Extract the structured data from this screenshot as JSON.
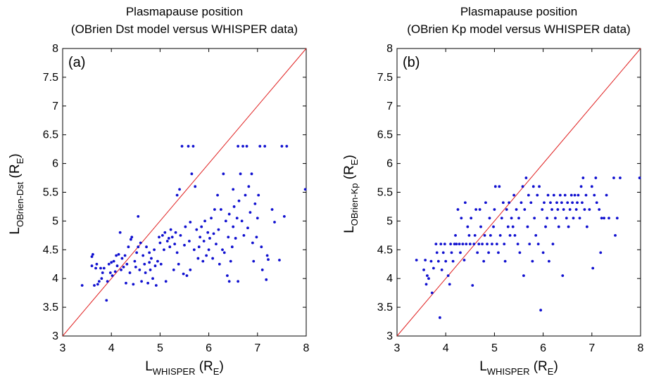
{
  "chart_data": [
    {
      "type": "scatter",
      "panel_label": "(a)",
      "title_line1": "Plasmapause position",
      "title_line2": "(OBrien Dst model versus WHISPER data)",
      "xlabel": {
        "main": "L",
        "sub": "WHISPER",
        "unit_open": " (R",
        "unit_sub": "E",
        "unit_close": ")"
      },
      "ylabel": {
        "main": "L",
        "sub": "OBrien-Dst",
        "unit_open": " (R",
        "unit_sub": "E",
        "unit_close": ")"
      },
      "xlim": [
        3,
        8
      ],
      "ylim": [
        3,
        8
      ],
      "x_ticks": [
        3,
        4,
        5,
        6,
        7,
        8
      ],
      "y_ticks": [
        3,
        3.5,
        4,
        4.5,
        5,
        5.5,
        6,
        6.5,
        7,
        7.5,
        8
      ],
      "x_tick_labels": [
        "3",
        "4",
        "5",
        "6",
        "7",
        "8"
      ],
      "y_tick_labels": [
        "3",
        "3.5",
        "4",
        "4.5",
        "5",
        "5.5",
        "6",
        "6.5",
        "7",
        "7.5",
        "8"
      ],
      "reference_line": {
        "from": [
          3,
          3
        ],
        "to": [
          8,
          8
        ],
        "color": "#e02020"
      },
      "marker_color": "#1010d0",
      "points": [
        [
          3.4,
          3.88
        ],
        [
          3.6,
          4.22
        ],
        [
          3.6,
          4.38
        ],
        [
          3.62,
          4.42
        ],
        [
          3.65,
          3.88
        ],
        [
          3.68,
          4.18
        ],
        [
          3.7,
          4.25
        ],
        [
          3.72,
          3.9
        ],
        [
          3.75,
          3.95
        ],
        [
          3.78,
          4.18
        ],
        [
          3.8,
          4.0
        ],
        [
          3.82,
          4.1
        ],
        [
          3.85,
          4.18
        ],
        [
          3.9,
          3.62
        ],
        [
          3.92,
          3.95
        ],
        [
          3.95,
          4.25
        ],
        [
          3.98,
          4.1
        ],
        [
          4.0,
          4.28
        ],
        [
          4.02,
          4.05
        ],
        [
          4.05,
          4.3
        ],
        [
          4.08,
          4.12
        ],
        [
          4.1,
          4.4
        ],
        [
          4.12,
          4.22
        ],
        [
          4.15,
          4.42
        ],
        [
          4.18,
          4.8
        ],
        [
          4.2,
          4.15
        ],
        [
          4.22,
          4.35
        ],
        [
          4.25,
          4.2
        ],
        [
          4.28,
          4.4
        ],
        [
          4.3,
          3.92
        ],
        [
          4.32,
          4.25
        ],
        [
          4.35,
          4.55
        ],
        [
          4.38,
          4.1
        ],
        [
          4.4,
          4.68
        ],
        [
          4.42,
          4.72
        ],
        [
          4.45,
          3.9
        ],
        [
          4.48,
          4.3
        ],
        [
          4.5,
          4.2
        ],
        [
          4.52,
          4.45
        ],
        [
          4.55,
          4.55
        ],
        [
          4.55,
          5.08
        ],
        [
          4.58,
          4.15
        ],
        [
          4.6,
          4.62
        ],
        [
          4.62,
          3.95
        ],
        [
          4.65,
          4.4
        ],
        [
          4.68,
          4.25
        ],
        [
          4.7,
          4.1
        ],
        [
          4.72,
          4.55
        ],
        [
          4.75,
          3.92
        ],
        [
          4.78,
          4.28
        ],
        [
          4.8,
          4.15
        ],
        [
          4.82,
          4.35
        ],
        [
          4.85,
          4.0
        ],
        [
          4.88,
          4.5
        ],
        [
          4.9,
          4.22
        ],
        [
          4.92,
          3.88
        ],
        [
          4.95,
          4.3
        ],
        [
          4.98,
          4.72
        ],
        [
          5.0,
          4.62
        ],
        [
          5.02,
          4.25
        ],
        [
          5.05,
          4.75
        ],
        [
          5.08,
          4.5
        ],
        [
          5.1,
          4.8
        ],
        [
          5.12,
          3.95
        ],
        [
          5.15,
          4.65
        ],
        [
          5.18,
          4.7
        ],
        [
          5.2,
          4.55
        ],
        [
          5.22,
          4.85
        ],
        [
          5.25,
          4.72
        ],
        [
          5.28,
          4.15
        ],
        [
          5.3,
          4.6
        ],
        [
          5.32,
          4.8
        ],
        [
          5.35,
          4.45
        ],
        [
          5.38,
          4.25
        ],
        [
          5.4,
          5.55
        ],
        [
          5.42,
          4.75
        ],
        [
          5.45,
          6.3
        ],
        [
          5.48,
          4.08
        ],
        [
          5.5,
          4.58
        ],
        [
          5.52,
          4.9
        ],
        [
          5.55,
          4.05
        ],
        [
          5.58,
          6.3
        ],
        [
          5.6,
          4.65
        ],
        [
          5.62,
          4.15
        ],
        [
          5.65,
          5.82
        ],
        [
          5.68,
          6.3
        ],
        [
          5.7,
          4.5
        ],
        [
          5.72,
          5.6
        ],
        [
          5.75,
          4.85
        ],
        [
          5.78,
          4.35
        ],
        [
          5.8,
          4.55
        ],
        [
          5.82,
          4.72
        ],
        [
          5.85,
          4.9
        ],
        [
          5.88,
          4.3
        ],
        [
          5.9,
          4.65
        ],
        [
          5.92,
          5.0
        ],
        [
          5.95,
          4.4
        ],
        [
          5.98,
          4.8
        ],
        [
          6.0,
          4.5
        ],
        [
          6.02,
          4.7
        ],
        [
          6.05,
          5.05
        ],
        [
          6.08,
          4.35
        ],
        [
          6.1,
          4.78
        ],
        [
          6.12,
          5.2
        ],
        [
          6.15,
          4.6
        ],
        [
          6.18,
          5.45
        ],
        [
          6.2,
          4.85
        ],
        [
          6.22,
          4.25
        ],
        [
          6.25,
          5.2
        ],
        [
          6.28,
          4.5
        ],
        [
          6.3,
          5.82
        ],
        [
          6.32,
          4.45
        ],
        [
          6.35,
          5.0
        ],
        [
          6.38,
          4.05
        ],
        [
          6.4,
          4.72
        ],
        [
          6.42,
          3.95
        ],
        [
          6.45,
          4.3
        ],
        [
          6.48,
          4.55
        ],
        [
          6.5,
          4.9
        ],
        [
          6.52,
          5.25
        ],
        [
          6.55,
          4.7
        ],
        [
          6.58,
          5.05
        ],
        [
          6.6,
          6.3
        ],
        [
          6.62,
          5.35
        ],
        [
          6.65,
          5.82
        ],
        [
          6.68,
          5.0
        ],
        [
          6.7,
          6.3
        ],
        [
          6.72,
          4.75
        ],
        [
          6.75,
          5.45
        ],
        [
          6.78,
          6.3
        ],
        [
          6.8,
          4.88
        ],
        [
          6.82,
          5.6
        ],
        [
          6.85,
          5.15
        ],
        [
          6.88,
          5.82
        ],
        [
          6.9,
          4.62
        ],
        [
          6.92,
          4.3
        ],
        [
          6.95,
          5.3
        ],
        [
          6.98,
          4.72
        ],
        [
          7.0,
          5.05
        ],
        [
          7.02,
          5.45
        ],
        [
          7.05,
          6.3
        ],
        [
          7.08,
          4.55
        ],
        [
          7.1,
          4.15
        ],
        [
          7.15,
          6.3
        ],
        [
          7.18,
          3.98
        ],
        [
          7.2,
          4.4
        ],
        [
          7.22,
          4.33
        ],
        [
          7.3,
          5.2
        ],
        [
          7.35,
          4.98
        ],
        [
          7.45,
          4.32
        ],
        [
          7.5,
          6.3
        ],
        [
          7.55,
          5.08
        ],
        [
          7.6,
          6.3
        ],
        [
          7.98,
          5.55
        ],
        [
          6.6,
          3.95
        ],
        [
          6.5,
          5.55
        ],
        [
          4.78,
          4.45
        ],
        [
          5.35,
          5.45
        ],
        [
          5.62,
          4.98
        ],
        [
          6.42,
          5.12
        ]
      ]
    },
    {
      "type": "scatter",
      "panel_label": "(b)",
      "title_line1": "Plasmapause position",
      "title_line2": "(OBrien Kp model versus WHISPER data)",
      "xlabel": {
        "main": "L",
        "sub": "WHISPER",
        "unit_open": " (R",
        "unit_sub": "E",
        "unit_close": ")"
      },
      "ylabel": {
        "main": "L",
        "sub": "OBrien-Kp",
        "unit_open": " (R",
        "unit_sub": "E",
        "unit_close": ")"
      },
      "xlim": [
        3,
        8
      ],
      "ylim": [
        3,
        8
      ],
      "x_ticks": [
        3,
        4,
        5,
        6,
        7,
        8
      ],
      "y_ticks": [
        3,
        3.5,
        4,
        4.5,
        5,
        5.5,
        6,
        6.5,
        7,
        7.5,
        8
      ],
      "x_tick_labels": [
        "3",
        "4",
        "5",
        "6",
        "7",
        "8"
      ],
      "y_tick_labels": [
        "3",
        "3.5",
        "4",
        "4.5",
        "5",
        "5.5",
        "6",
        "6.5",
        "7",
        "7.5",
        "8"
      ],
      "reference_line": {
        "from": [
          3,
          3
        ],
        "to": [
          8,
          8
        ],
        "color": "#e02020"
      },
      "marker_color": "#1010d0",
      "points": [
        [
          3.4,
          4.32
        ],
        [
          3.55,
          4.15
        ],
        [
          3.58,
          4.32
        ],
        [
          3.6,
          3.9
        ],
        [
          3.62,
          4.05
        ],
        [
          3.65,
          4.0
        ],
        [
          3.7,
          4.3
        ],
        [
          3.72,
          3.75
        ],
        [
          3.75,
          4.18
        ],
        [
          3.8,
          4.6
        ],
        [
          3.82,
          4.45
        ],
        [
          3.85,
          4.3
        ],
        [
          3.88,
          3.32
        ],
        [
          3.9,
          4.6
        ],
        [
          3.92,
          4.15
        ],
        [
          3.95,
          4.45
        ],
        [
          3.98,
          4.6
        ],
        [
          4.0,
          4.3
        ],
        [
          4.05,
          4.05
        ],
        [
          4.08,
          3.9
        ],
        [
          4.1,
          4.6
        ],
        [
          4.12,
          4.45
        ],
        [
          4.15,
          4.3
        ],
        [
          4.18,
          4.6
        ],
        [
          4.2,
          4.75
        ],
        [
          4.22,
          4.6
        ],
        [
          4.25,
          5.2
        ],
        [
          4.28,
          4.6
        ],
        [
          4.3,
          4.45
        ],
        [
          4.32,
          5.05
        ],
        [
          4.35,
          4.6
        ],
        [
          4.38,
          4.32
        ],
        [
          4.4,
          5.32
        ],
        [
          4.42,
          4.6
        ],
        [
          4.45,
          4.9
        ],
        [
          4.48,
          4.75
        ],
        [
          4.5,
          4.6
        ],
        [
          4.52,
          5.05
        ],
        [
          4.55,
          3.88
        ],
        [
          4.58,
          4.6
        ],
        [
          4.6,
          4.75
        ],
        [
          4.62,
          5.2
        ],
        [
          4.65,
          4.45
        ],
        [
          4.68,
          4.6
        ],
        [
          4.7,
          5.2
        ],
        [
          4.72,
          4.9
        ],
        [
          4.75,
          4.6
        ],
        [
          4.78,
          4.3
        ],
        [
          4.8,
          4.75
        ],
        [
          4.82,
          5.32
        ],
        [
          4.85,
          4.6
        ],
        [
          4.88,
          4.45
        ],
        [
          4.9,
          5.05
        ],
        [
          4.92,
          4.75
        ],
        [
          4.95,
          4.6
        ],
        [
          4.98,
          4.9
        ],
        [
          5.0,
          5.2
        ],
        [
          5.02,
          5.6
        ],
        [
          5.05,
          4.6
        ],
        [
          5.08,
          4.45
        ],
        [
          5.1,
          5.6
        ],
        [
          5.12,
          4.75
        ],
        [
          5.15,
          5.05
        ],
        [
          5.18,
          5.32
        ],
        [
          5.2,
          4.6
        ],
        [
          5.22,
          4.3
        ],
        [
          5.25,
          5.2
        ],
        [
          5.28,
          4.9
        ],
        [
          5.3,
          5.32
        ],
        [
          5.32,
          4.75
        ],
        [
          5.35,
          5.05
        ],
        [
          5.38,
          4.9
        ],
        [
          5.4,
          5.45
        ],
        [
          5.42,
          4.75
        ],
        [
          5.45,
          5.2
        ],
        [
          5.48,
          4.6
        ],
        [
          5.5,
          5.05
        ],
        [
          5.52,
          4.45
        ],
        [
          5.55,
          5.32
        ],
        [
          5.58,
          5.6
        ],
        [
          5.6,
          4.05
        ],
        [
          5.62,
          5.2
        ],
        [
          5.65,
          5.75
        ],
        [
          5.68,
          4.9
        ],
        [
          5.7,
          5.45
        ],
        [
          5.72,
          4.6
        ],
        [
          5.75,
          5.32
        ],
        [
          5.78,
          4.3
        ],
        [
          5.8,
          5.6
        ],
        [
          5.82,
          5.05
        ],
        [
          5.85,
          4.75
        ],
        [
          5.88,
          5.45
        ],
        [
          5.9,
          4.6
        ],
        [
          5.92,
          5.6
        ],
        [
          5.95,
          3.45
        ],
        [
          5.98,
          5.2
        ],
        [
          6.0,
          4.45
        ],
        [
          6.02,
          5.32
        ],
        [
          6.05,
          4.9
        ],
        [
          6.08,
          5.05
        ],
        [
          6.1,
          5.45
        ],
        [
          6.12,
          4.3
        ],
        [
          6.15,
          5.32
        ],
        [
          6.18,
          5.2
        ],
        [
          6.2,
          4.6
        ],
        [
          6.22,
          5.45
        ],
        [
          6.25,
          5.05
        ],
        [
          6.28,
          5.32
        ],
        [
          6.3,
          5.2
        ],
        [
          6.32,
          4.9
        ],
        [
          6.35,
          5.45
        ],
        [
          6.38,
          5.32
        ],
        [
          6.4,
          4.05
        ],
        [
          6.42,
          5.2
        ],
        [
          6.45,
          5.45
        ],
        [
          6.48,
          5.05
        ],
        [
          6.5,
          5.32
        ],
        [
          6.52,
          4.9
        ],
        [
          6.55,
          5.2
        ],
        [
          6.58,
          5.45
        ],
        [
          6.6,
          5.32
        ],
        [
          6.62,
          5.05
        ],
        [
          6.65,
          5.45
        ],
        [
          6.68,
          5.2
        ],
        [
          6.7,
          5.32
        ],
        [
          6.72,
          5.45
        ],
        [
          6.75,
          5.05
        ],
        [
          6.78,
          5.6
        ],
        [
          6.8,
          5.32
        ],
        [
          6.82,
          5.75
        ],
        [
          6.85,
          5.2
        ],
        [
          6.88,
          5.45
        ],
        [
          6.9,
          4.9
        ],
        [
          6.95,
          5.2
        ],
        [
          7.0,
          5.6
        ],
        [
          7.02,
          4.18
        ],
        [
          7.05,
          5.45
        ],
        [
          7.08,
          5.75
        ],
        [
          7.1,
          5.32
        ],
        [
          7.15,
          5.2
        ],
        [
          7.18,
          4.45
        ],
        [
          7.2,
          5.05
        ],
        [
          7.25,
          5.05
        ],
        [
          7.3,
          5.45
        ],
        [
          7.35,
          5.05
        ],
        [
          7.45,
          5.75
        ],
        [
          7.48,
          4.75
        ],
        [
          7.52,
          5.05
        ],
        [
          7.58,
          5.75
        ],
        [
          7.98,
          5.75
        ]
      ]
    }
  ]
}
